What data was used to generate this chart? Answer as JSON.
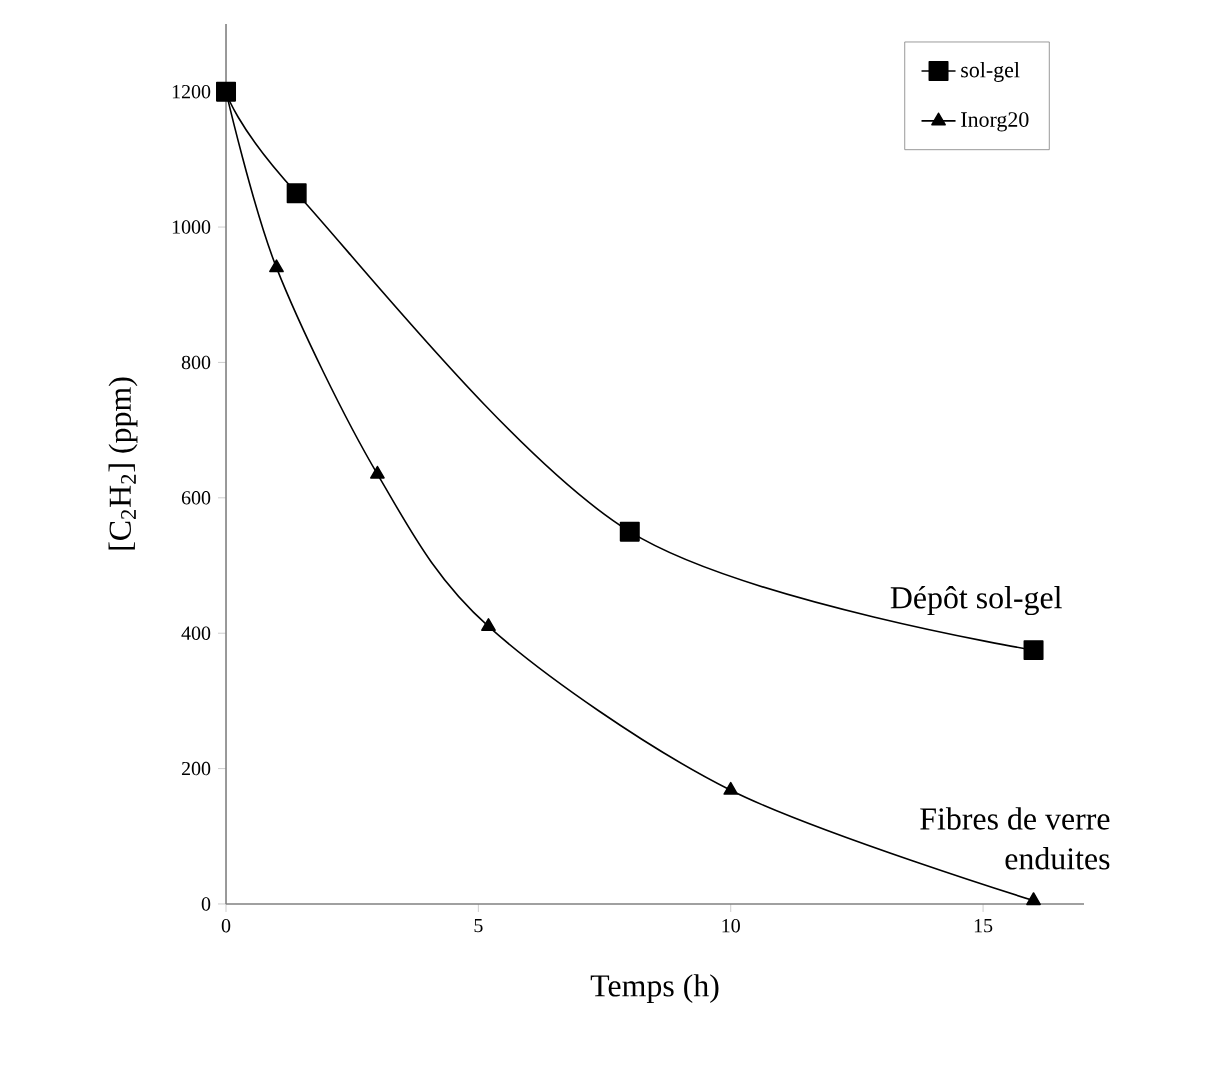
{
  "chart_data": {
    "type": "line",
    "xlabel": "Temps (h)",
    "ylabel": "[C$_{2}$H$_{2}$] (ppm)",
    "xlim": [
      0,
      17
    ],
    "ylim": [
      0,
      1300
    ],
    "xticks": [
      0,
      5,
      10,
      15
    ],
    "yticks": [
      0,
      200,
      400,
      600,
      800,
      1000,
      1200
    ],
    "grid": false,
    "legend": "top right",
    "line_style": "solid",
    "series": [
      {
        "name": "sol-gel",
        "color": "#000000",
        "marker": "square",
        "x": [
          0,
          1.4,
          8,
          16
        ],
        "values": [
          1200,
          1050,
          550,
          375
        ]
      },
      {
        "name": "Inorg20",
        "color": "#000000",
        "marker": "triangle",
        "x": [
          0,
          1,
          3,
          5.2,
          10,
          16
        ],
        "values": [
          1200,
          940,
          635,
          410,
          168,
          5
        ]
      }
    ],
    "annotations": [
      {
        "text": "Dépôt sol-gel",
        "x": 16,
        "y": 375
      },
      {
        "text": "Fibres de verre enduites",
        "x": 16,
        "y": 5
      }
    ]
  }
}
